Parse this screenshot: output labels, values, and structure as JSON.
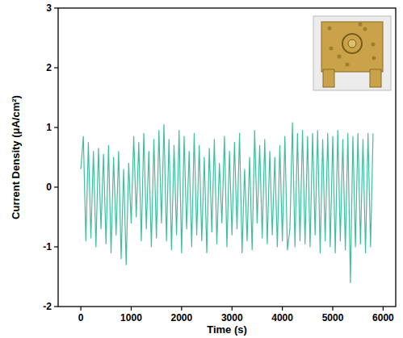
{
  "chart_data": {
    "type": "line",
    "x_label": "Time (s)",
    "y_label": "Current Density (μA/cm²)",
    "xlim": [
      -450,
      6250
    ],
    "ylim": [
      -2,
      3
    ],
    "xticks": [
      0,
      1000,
      2000,
      3000,
      4000,
      5000,
      6000
    ],
    "yticks": [
      -2,
      -1,
      0,
      1,
      2,
      3
    ],
    "grid": false,
    "series": [
      {
        "color": "#3fbf9c",
        "x": [
          0,
          50,
          100,
          150,
          200,
          250,
          300,
          350,
          400,
          450,
          500,
          550,
          600,
          650,
          700,
          750,
          800,
          850,
          900,
          950,
          1000,
          1050,
          1100,
          1150,
          1200,
          1250,
          1300,
          1350,
          1400,
          1450,
          1500,
          1550,
          1600,
          1650,
          1700,
          1750,
          1800,
          1850,
          1900,
          1950,
          2000,
          2050,
          2100,
          2150,
          2200,
          2250,
          2300,
          2350,
          2400,
          2450,
          2500,
          2550,
          2600,
          2650,
          2700,
          2750,
          2800,
          2850,
          2900,
          2950,
          3000,
          3050,
          3100,
          3150,
          3200,
          3250,
          3300,
          3350,
          3400,
          3450,
          3500,
          3550,
          3600,
          3650,
          3700,
          3750,
          3800,
          3850,
          3900,
          3950,
          4000,
          4050,
          4100,
          4150,
          4200,
          4250,
          4300,
          4350,
          4400,
          4450,
          4500,
          4550,
          4600,
          4650,
          4700,
          4750,
          4800,
          4850,
          4900,
          4950,
          5000,
          5050,
          5100,
          5150,
          5200,
          5250,
          5300,
          5350,
          5400,
          5450,
          5500,
          5550,
          5600,
          5650,
          5700,
          5750,
          5800
        ],
        "values": [
          0.3,
          0.85,
          -0.9,
          0.75,
          -0.85,
          0.6,
          -1.0,
          0.65,
          -0.7,
          0.55,
          -0.95,
          0.7,
          -1.1,
          0.5,
          -0.8,
          0.6,
          -1.2,
          0.3,
          -1.3,
          0.4,
          -0.6,
          0.85,
          -0.5,
          0.75,
          -0.9,
          0.9,
          -0.7,
          0.6,
          -1.0,
          0.8,
          -0.85,
          0.95,
          -0.6,
          1.05,
          -0.9,
          0.8,
          -1.05,
          0.7,
          -0.8,
          0.95,
          -1.1,
          0.85,
          -0.7,
          0.6,
          -1.0,
          0.9,
          -0.8,
          0.7,
          -0.9,
          0.5,
          -1.1,
          0.65,
          -0.75,
          0.8,
          -0.95,
          0.4,
          -0.6,
          0.85,
          -1.0,
          0.6,
          -0.8,
          0.75,
          -0.7,
          0.9,
          -1.1,
          0.3,
          -0.9,
          0.5,
          -1.05,
          0.95,
          -0.6,
          0.7,
          -0.85,
          0.8,
          -0.95,
          0.6,
          -0.8,
          0.5,
          -1.0,
          0.7,
          -0.9,
          0.85,
          -1.05,
          -0.7,
          1.08,
          -1.0,
          0.9,
          -0.9,
          0.95,
          -0.95,
          0.85,
          -1.0,
          0.9,
          -0.8,
          0.95,
          -1.1,
          0.8,
          -0.9,
          0.9,
          -1.0,
          0.85,
          -1.1,
          0.95,
          -0.9,
          0.8,
          -1.05,
          0.9,
          -1.6,
          0.85,
          -1.0,
          0.9,
          -0.95,
          0.8,
          -1.1,
          0.9,
          -1.0,
          0.9
        ]
      }
    ]
  }
}
